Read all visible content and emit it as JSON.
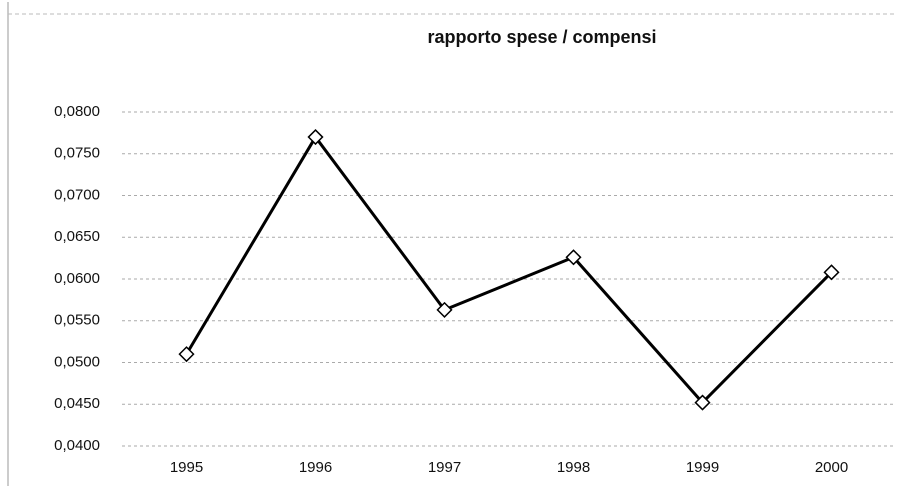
{
  "chart_data": {
    "type": "line",
    "title": "rapporto spese / compensi",
    "categories": [
      "1995",
      "1996",
      "1997",
      "1998",
      "1999",
      "2000"
    ],
    "series": [
      {
        "color": "#000000",
        "values": [
          0.051,
          0.077,
          0.0563,
          0.0626,
          0.0452,
          0.0608
        ]
      }
    ],
    "ylim": [
      0.04,
      0.08
    ],
    "yticks": [
      {
        "value": 0.04,
        "label": "0,0400"
      },
      {
        "value": 0.045,
        "label": "0,0450"
      },
      {
        "value": 0.05,
        "label": "0,0500"
      },
      {
        "value": 0.055,
        "label": "0,0550"
      },
      {
        "value": 0.06,
        "label": "0,0600"
      },
      {
        "value": 0.065,
        "label": "0,0650"
      },
      {
        "value": 0.07,
        "label": "0,0700"
      },
      {
        "value": 0.075,
        "label": "0,0750"
      },
      {
        "value": 0.08,
        "label": "0,0800"
      }
    ],
    "grid": true,
    "marker": "diamond"
  }
}
